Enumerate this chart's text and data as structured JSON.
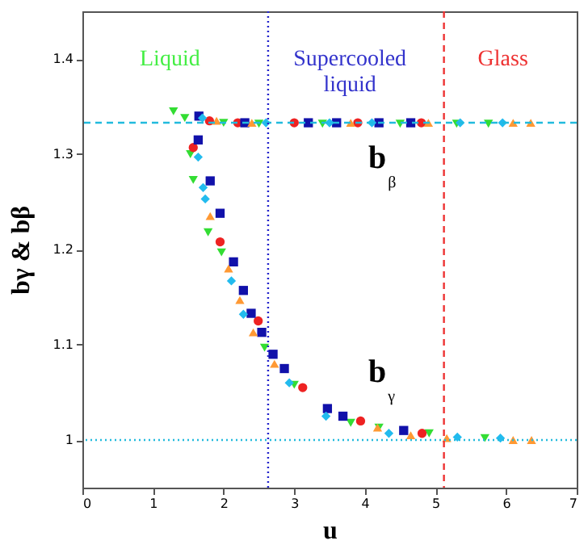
{
  "chart_data": {
    "type": "scatter",
    "xlabel": "u",
    "ylabel": "bγ & bβ",
    "xlim": [
      0,
      7
    ],
    "ylim": [
      0.95,
      1.45
    ],
    "xticks": [
      0,
      1,
      2,
      3,
      4,
      5,
      6,
      7
    ],
    "yticks": [
      1,
      1.1,
      1.2,
      1.3,
      1.4
    ],
    "grid": false,
    "series": [
      {
        "color": "#33dd33",
        "marker": "triangle-down",
        "x": [
          1.53,
          1.57,
          1.78,
          1.97,
          2.58,
          3.0,
          3.8,
          4.2,
          4.91,
          5.7,
          1.29,
          1.45,
          2.0,
          2.5,
          3.4,
          4.5,
          5.3,
          5.75
        ],
        "values": [
          1.3,
          1.273,
          1.218,
          1.197,
          1.097,
          1.058,
          1.018,
          1.013,
          1.007,
          1.002,
          1.345,
          1.338,
          1.333,
          1.332,
          1.332,
          1.332,
          1.332,
          1.332
        ]
      },
      {
        "color": "#ee2222",
        "marker": "circle",
        "x": [
          1.57,
          1.95,
          2.49,
          3.12,
          3.94,
          4.81,
          1.8,
          2.2,
          3.0,
          3.9,
          4.8
        ],
        "values": [
          1.307,
          1.208,
          1.125,
          1.055,
          1.02,
          1.007,
          1.335,
          1.333,
          1.333,
          1.333,
          1.333
        ]
      },
      {
        "color": "#1111aa",
        "marker": "square",
        "x": [
          1.64,
          1.81,
          1.95,
          2.14,
          2.28,
          2.39,
          2.54,
          2.7,
          2.86,
          3.47,
          3.69,
          4.55,
          1.65,
          2.3,
          3.2,
          3.6,
          4.2,
          4.65
        ],
        "values": [
          1.315,
          1.272,
          1.238,
          1.187,
          1.157,
          1.133,
          1.113,
          1.09,
          1.075,
          1.033,
          1.025,
          1.01,
          1.34,
          1.333,
          1.333,
          1.333,
          1.333,
          1.333
        ]
      },
      {
        "color": "#22bbee",
        "marker": "diamond",
        "x": [
          1.64,
          1.71,
          1.74,
          2.11,
          2.28,
          2.93,
          3.45,
          4.34,
          5.31,
          5.92,
          1.7,
          2.6,
          3.5,
          4.1,
          5.35,
          5.95
        ],
        "values": [
          1.297,
          1.265,
          1.253,
          1.167,
          1.132,
          1.06,
          1.025,
          1.007,
          1.003,
          1.002,
          1.338,
          1.333,
          1.333,
          1.333,
          1.333,
          1.333
        ]
      },
      {
        "color": "#ff9933",
        "marker": "triangle",
        "x": [
          1.81,
          2.07,
          2.23,
          2.42,
          2.72,
          4.18,
          4.65,
          5.16,
          6.1,
          6.36,
          1.9,
          2.4,
          3.8,
          4.9,
          6.1,
          6.35
        ],
        "values": [
          1.235,
          1.18,
          1.147,
          1.113,
          1.08,
          1.013,
          1.005,
          1.002,
          1.0,
          1.0,
          1.335,
          1.333,
          1.333,
          1.333,
          1.333,
          1.333
        ]
      }
    ],
    "ref_lines": [
      {
        "axis": "y",
        "value": 1.333,
        "color": "#22bbdd",
        "line_style": "dashed"
      },
      {
        "axis": "y",
        "value": 1,
        "color": "#22bbdd",
        "line_style": "dotted"
      },
      {
        "axis": "x",
        "value": 2.63,
        "color": "#2222cc",
        "line_style": "dotted"
      },
      {
        "axis": "x",
        "value": 5.12,
        "color": "#ee3333",
        "line_style": "dashed"
      }
    ],
    "annotations": [
      "Liquid",
      "Supercooled\nliquid",
      "Glass",
      "b$_{β}$",
      "b$_{γ}$"
    ]
  }
}
